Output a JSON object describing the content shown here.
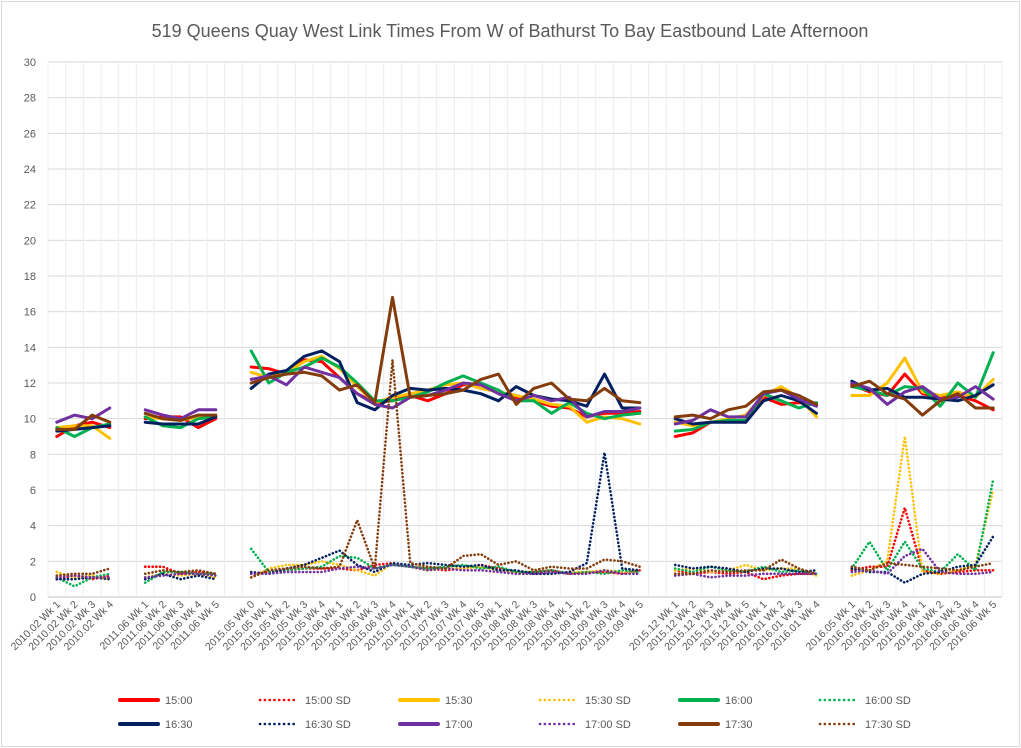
{
  "chart_data": {
    "type": "line",
    "title": "519 Queens Quay West Link Times From W of Bathurst To Bay Eastbound Late Afternoon",
    "xlabel": "",
    "ylabel": "",
    "ylim": [
      0,
      30
    ],
    "yticks": [
      0,
      2,
      4,
      6,
      8,
      10,
      12,
      14,
      16,
      18,
      20,
      22,
      24,
      26,
      28,
      30
    ],
    "grid": true,
    "legend_position": "bottom",
    "groups": [
      [
        "2010.02 Wk 1",
        "2010.02 Wk 2",
        "2010.02 Wk 3",
        "2010.02 Wk 4"
      ],
      [
        "2011.06 Wk 1",
        "2011.06 Wk 2",
        "2011.06 Wk 3",
        "2011.06 Wk 4",
        "2011.06 Wk 5"
      ],
      [
        "2015.05 Wk 0",
        "2015.05 Wk 1",
        "2015.05 Wk 2",
        "2015.05 Wk 3",
        "2015.05 Wk 4",
        "2015.06 Wk 1",
        "2015.06 Wk 2",
        "2015.06 Wk 3",
        "2015.06 Wk 4",
        "2015.07 Wk 1",
        "2015.07 Wk 2",
        "2015.07 Wk 3",
        "2015.07 Wk 4",
        "2015.07 Wk 5",
        "2015.08 Wk 1",
        "2015.08 Wk 2",
        "2015.08 Wk 3",
        "2015.08 Wk 4",
        "2015.09 Wk 1",
        "2015.09 Wk 2",
        "2015.09 Wk 3",
        "2015.09 Wk 4",
        "2015.09 Wk 5"
      ],
      [
        "2015.12 Wk 1",
        "2015.12 Wk 2",
        "2015.12 Wk 3",
        "2015.12 Wk 4",
        "2015.12 Wk 5",
        "2016.01 Wk 1",
        "2016.01 Wk 2",
        "2016.01 Wk 3",
        "2016.01 Wk 4"
      ],
      [
        "2016.05 Wk 1",
        "2016.05 Wk 2",
        "2016.05 Wk 3",
        "2016.05 Wk 4",
        "2016.06 Wk 1",
        "2016.06 Wk 2",
        "2016.06 Wk 3",
        "2016.06 Wk 4",
        "2016.06 Wk 5"
      ]
    ],
    "series": [
      {
        "name": "15:00",
        "color": "#ff0000",
        "style": "solid",
        "values": [
          [
            9.0,
            9.6,
            9.8,
            9.5
          ],
          [
            10.0,
            10.1,
            10.1,
            9.5,
            10.0
          ],
          [
            12.9,
            12.8,
            12.5,
            13.3,
            13.2,
            12.3,
            11.4,
            10.9,
            11.0,
            11.3,
            11.0,
            11.4,
            11.9,
            11.9,
            11.5,
            11.2,
            11.0,
            10.7,
            10.6,
            10.1,
            10.3,
            10.3,
            10.4
          ],
          [
            9.0,
            9.2,
            9.8,
            9.9,
            9.8,
            11.2,
            10.8,
            10.9,
            10.8
          ],
          [
            11.9,
            11.5,
            11.3,
            12.5,
            11.4,
            11.2,
            11.3,
            11.0,
            10.5
          ]
        ]
      },
      {
        "name": "15:00 SD",
        "color": "#ff0000",
        "style": "dotted",
        "values": [
          [
            1.0,
            1.2,
            1.0,
            1.2
          ],
          [
            1.7,
            1.7,
            1.3,
            1.4,
            1.3
          ],
          [
            1.3,
            1.4,
            1.5,
            1.6,
            1.6,
            1.6,
            1.5,
            1.8,
            1.9,
            1.7,
            1.6,
            1.5,
            1.6,
            1.8,
            1.6,
            1.4,
            1.4,
            1.5,
            1.3,
            1.4,
            1.4,
            1.3,
            1.5
          ],
          [
            1.5,
            1.3,
            1.4,
            1.3,
            1.4,
            1.0,
            1.2,
            1.3,
            1.3
          ],
          [
            1.5,
            1.7,
            1.7,
            5.0,
            1.5,
            1.3,
            1.4,
            1.5,
            1.5
          ]
        ]
      },
      {
        "name": "15:30",
        "color": "#ffc000",
        "style": "solid",
        "values": [
          [
            9.5,
            9.6,
            9.6,
            8.9
          ],
          [
            10.1,
            10.0,
            9.9,
            10.1,
            10.2
          ],
          [
            12.6,
            12.3,
            12.6,
            13.2,
            13.5,
            12.8,
            11.8,
            10.9,
            11.2,
            11.4,
            11.6,
            11.9,
            12.0,
            11.7,
            11.5,
            11.3,
            11.1,
            10.8,
            10.7,
            9.8,
            10.1,
            10.0,
            9.7
          ],
          [
            9.8,
            9.6,
            9.8,
            10.0,
            10.2,
            11.3,
            11.8,
            11.2,
            10.1
          ],
          [
            11.3,
            11.3,
            12.0,
            13.4,
            11.5,
            11.3,
            11.5,
            11.2,
            12.2
          ]
        ]
      },
      {
        "name": "15:30 SD",
        "color": "#ffc000",
        "style": "dotted",
        "values": [
          [
            1.4,
            1.1,
            1.2,
            1.0
          ],
          [
            1.1,
            1.3,
            1.2,
            1.3,
            1.1
          ],
          [
            1.1,
            1.6,
            1.8,
            1.8,
            2.0,
            1.8,
            1.5,
            1.2,
            1.9,
            1.7,
            1.5,
            1.6,
            1.6,
            1.7,
            1.5,
            1.4,
            1.3,
            1.3,
            1.4,
            1.4,
            1.5,
            1.4,
            1.3
          ],
          [
            1.5,
            1.6,
            1.4,
            1.5,
            1.8,
            1.5,
            1.6,
            1.6,
            1.2
          ],
          [
            1.2,
            1.5,
            2.0,
            9.0,
            1.4,
            1.3,
            1.5,
            1.8,
            6.0
          ]
        ]
      },
      {
        "name": "16:00",
        "color": "#00b050",
        "style": "solid",
        "values": [
          [
            9.5,
            9.0,
            9.5,
            9.7
          ],
          [
            10.1,
            9.6,
            9.5,
            10.0,
            10.1
          ],
          [
            13.8,
            12.0,
            12.6,
            12.9,
            13.4,
            12.9,
            12.0,
            11.0,
            11.0,
            11.2,
            11.5,
            12.0,
            12.4,
            12.0,
            11.6,
            11.0,
            11.0,
            10.3,
            10.9,
            10.3,
            10.0,
            10.2,
            10.3
          ],
          [
            9.3,
            9.4,
            9.8,
            9.9,
            9.9,
            11.4,
            11.0,
            10.6,
            10.9
          ],
          [
            11.8,
            11.6,
            11.3,
            11.8,
            11.7,
            10.7,
            12.0,
            11.2,
            13.7
          ]
        ]
      },
      {
        "name": "16:00 SD",
        "color": "#00b050",
        "style": "dotted",
        "values": [
          [
            1.1,
            0.6,
            1.1,
            1.3
          ],
          [
            0.8,
            1.4,
            1.4,
            1.3,
            1.3
          ],
          [
            2.7,
            1.4,
            1.5,
            1.6,
            1.7,
            2.3,
            2.2,
            1.6,
            1.8,
            1.7,
            1.6,
            1.7,
            1.8,
            1.6,
            1.7,
            1.4,
            1.4,
            1.5,
            1.3,
            1.4,
            1.3,
            1.5,
            1.4
          ],
          [
            1.6,
            1.4,
            1.7,
            1.5,
            1.4,
            1.7,
            1.4,
            1.5,
            1.3
          ],
          [
            1.6,
            3.1,
            1.5,
            3.1,
            1.6,
            1.4,
            2.4,
            1.5,
            6.6
          ]
        ]
      },
      {
        "name": "16:30",
        "color": "#002060",
        "style": "solid",
        "values": [
          [
            9.3,
            9.4,
            9.5,
            9.6
          ],
          [
            9.8,
            9.7,
            9.7,
            9.7,
            10.1
          ],
          [
            11.7,
            12.5,
            12.7,
            13.5,
            13.8,
            13.2,
            10.9,
            10.5,
            11.3,
            11.7,
            11.6,
            11.7,
            11.6,
            11.4,
            11.0,
            11.8,
            11.3,
            11.1,
            11.0,
            10.7,
            12.5,
            10.6,
            10.6
          ],
          [
            10.0,
            9.7,
            9.8,
            9.8,
            9.8,
            11.0,
            11.3,
            11.0,
            10.3
          ],
          [
            12.1,
            11.6,
            11.7,
            11.2,
            11.2,
            11.1,
            11.0,
            11.3,
            11.9
          ]
        ]
      },
      {
        "name": "16:30 SD",
        "color": "#002060",
        "style": "dotted",
        "values": [
          [
            1.0,
            1.0,
            1.1,
            1.0
          ],
          [
            1.0,
            1.3,
            1.0,
            1.2,
            1.0
          ],
          [
            1.4,
            1.3,
            1.6,
            1.8,
            2.2,
            2.6,
            1.8,
            1.4,
            1.9,
            1.8,
            1.9,
            1.8,
            1.7,
            1.8,
            1.5,
            1.5,
            1.3,
            1.3,
            1.4,
            1.9,
            8.1,
            1.6,
            1.5
          ],
          [
            1.8,
            1.6,
            1.7,
            1.6,
            1.4,
            1.6,
            1.6,
            1.4,
            1.5
          ],
          [
            1.6,
            1.4,
            1.4,
            0.8,
            1.3,
            1.4,
            1.7,
            1.8,
            3.4
          ]
        ]
      },
      {
        "name": "17:00",
        "color": "#7030a0",
        "style": "solid",
        "values": [
          [
            9.8,
            10.2,
            10.0,
            10.6
          ],
          [
            10.5,
            10.2,
            10.0,
            10.5,
            10.5
          ],
          [
            12.2,
            12.4,
            11.9,
            12.9,
            12.6,
            12.3,
            11.4,
            10.8,
            10.6,
            11.2,
            11.3,
            11.6,
            12.0,
            11.9,
            11.4,
            11.0,
            11.3,
            11.0,
            11.2,
            10.1,
            10.4,
            10.4,
            10.6
          ],
          [
            9.7,
            9.9,
            10.5,
            10.1,
            10.1,
            11.4,
            11.6,
            11.1,
            10.7
          ],
          [
            12.0,
            11.7,
            10.8,
            11.5,
            11.8,
            11.1,
            11.2,
            11.8,
            11.1
          ]
        ]
      },
      {
        "name": "17:00 SD",
        "color": "#7030a0",
        "style": "dotted",
        "values": [
          [
            1.1,
            1.2,
            1.1,
            1.1
          ],
          [
            1.1,
            1.2,
            1.3,
            1.3,
            1.2
          ],
          [
            1.3,
            1.3,
            1.4,
            1.4,
            1.4,
            1.6,
            1.7,
            1.6,
            1.8,
            1.7,
            1.5,
            1.6,
            1.5,
            1.5,
            1.4,
            1.3,
            1.3,
            1.4,
            1.3,
            1.3,
            1.5,
            1.3,
            1.3
          ],
          [
            1.2,
            1.3,
            1.1,
            1.2,
            1.2,
            1.3,
            1.3,
            1.3,
            1.3
          ],
          [
            1.4,
            1.5,
            1.3,
            2.3,
            2.7,
            1.4,
            1.3,
            1.3,
            1.4
          ]
        ]
      },
      {
        "name": "17:30",
        "color": "#843c0c",
        "style": "solid",
        "values": [
          [
            9.4,
            9.4,
            10.2,
            9.8
          ],
          [
            10.3,
            10.0,
            9.9,
            10.2,
            10.2
          ],
          [
            12.0,
            12.3,
            12.5,
            12.6,
            12.4,
            11.6,
            11.9,
            10.9,
            16.8,
            11.2,
            11.3,
            11.4,
            11.6,
            12.2,
            12.5,
            10.8,
            11.7,
            12.0,
            11.1,
            11.0,
            11.7,
            11.0,
            10.9
          ],
          [
            10.1,
            10.2,
            10.0,
            10.5,
            10.7,
            11.5,
            11.6,
            11.3,
            10.8
          ],
          [
            11.8,
            12.1,
            11.4,
            11.1,
            10.2,
            11.0,
            11.4,
            10.6,
            10.6
          ]
        ]
      },
      {
        "name": "17:30 SD",
        "color": "#843c0c",
        "style": "dotted",
        "values": [
          [
            1.2,
            1.3,
            1.3,
            1.6
          ],
          [
            1.3,
            1.5,
            1.4,
            1.5,
            1.3
          ],
          [
            1.1,
            1.5,
            1.6,
            1.7,
            1.6,
            1.7,
            4.3,
            1.6,
            13.3,
            1.9,
            1.7,
            1.6,
            2.3,
            2.4,
            1.8,
            2.0,
            1.5,
            1.7,
            1.6,
            1.6,
            2.1,
            2.0,
            1.7
          ],
          [
            1.3,
            1.3,
            1.5,
            1.4,
            1.5,
            1.5,
            2.1,
            1.6,
            1.3
          ],
          [
            1.7,
            1.5,
            1.9,
            1.8,
            1.7,
            1.6,
            1.5,
            1.7,
            1.9
          ]
        ]
      }
    ]
  }
}
